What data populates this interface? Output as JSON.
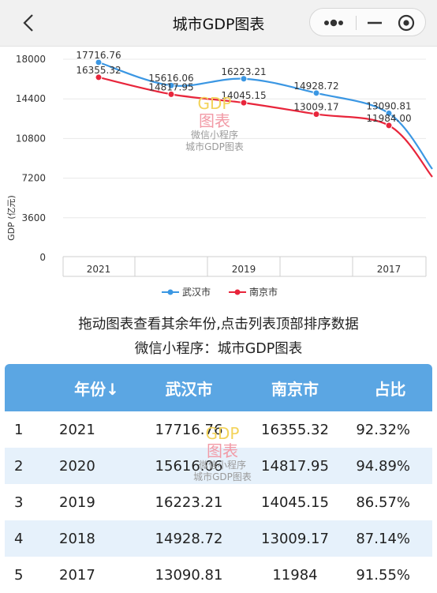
{
  "header": {
    "title": "城市GDP图表"
  },
  "chart_data": {
    "type": "line",
    "categories": [
      "2021",
      "2020",
      "2019",
      "2018",
      "2017"
    ],
    "x_tick_labels": [
      "2021",
      "2019",
      "2017"
    ],
    "ylabel": "GDP (亿元)",
    "ylim": [
      0,
      18000
    ],
    "yticks": [
      0,
      3600,
      7200,
      10800,
      14400,
      18000
    ],
    "grid": true,
    "legend_position": "bottom",
    "series": [
      {
        "name": "武汉市",
        "color": "#3b97e3",
        "values": [
          17716.76,
          15616.06,
          16223.21,
          14928.72,
          13090.81
        ]
      },
      {
        "name": "南京市",
        "color": "#e8253b",
        "values": [
          16355.32,
          14817.95,
          14045.15,
          13009.17,
          11984.0
        ]
      }
    ]
  },
  "watermark": {
    "line1": "GDP",
    "line2": "图表",
    "line3": "微信小程序",
    "line4": "城市GDP图表"
  },
  "hints": {
    "line1": "拖动图表查看其余年份,点击列表顶部排序数据",
    "line2": "微信小程序：城市GDP图表"
  },
  "table": {
    "headers": {
      "blank": "",
      "year": "年份↓",
      "wuhan": "武汉市",
      "nanjing": "南京市",
      "ratio": "占比"
    },
    "rows": [
      {
        "rank": "1",
        "year": "2021",
        "wuhan": "17716.76",
        "nanjing": "16355.32",
        "ratio": "92.32%"
      },
      {
        "rank": "2",
        "year": "2020",
        "wuhan": "15616.06",
        "nanjing": "14817.95",
        "ratio": "94.89%"
      },
      {
        "rank": "3",
        "year": "2019",
        "wuhan": "16223.21",
        "nanjing": "14045.15",
        "ratio": "86.57%"
      },
      {
        "rank": "4",
        "year": "2018",
        "wuhan": "14928.72",
        "nanjing": "13009.17",
        "ratio": "87.14%"
      },
      {
        "rank": "5",
        "year": "2017",
        "wuhan": "13090.81",
        "nanjing": "11984",
        "ratio": "91.55%"
      }
    ]
  }
}
